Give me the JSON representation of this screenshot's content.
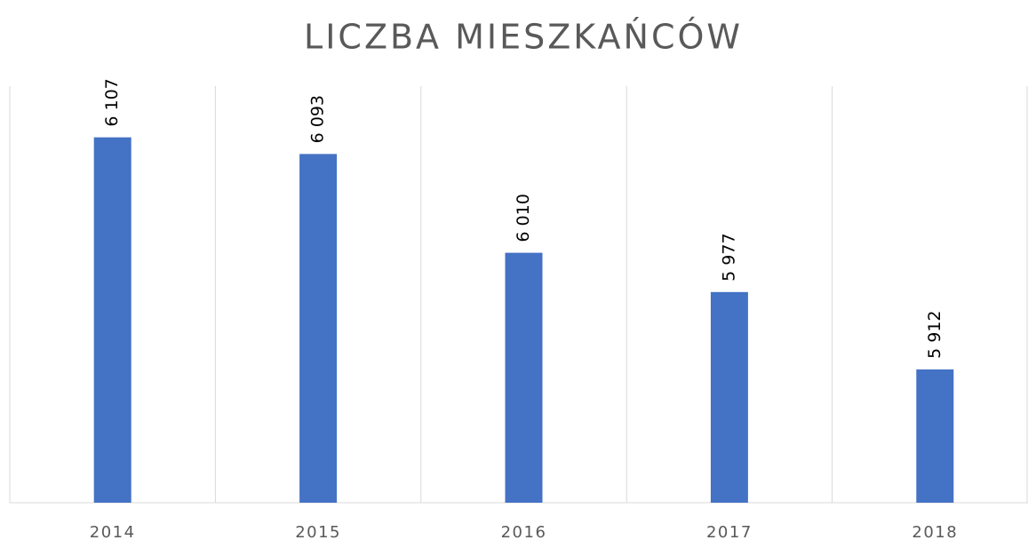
{
  "chart_data": {
    "type": "bar",
    "title": "LICZBA MIESZKAŃCÓW",
    "categories": [
      "2014",
      "2015",
      "2016",
      "2017",
      "2018"
    ],
    "values": [
      6107,
      6093,
      6010,
      5977,
      5912
    ],
    "value_labels": [
      "6 107",
      "6 093",
      "6 010",
      "5 977",
      "5 912"
    ],
    "color": "#4472c4",
    "ylim": [
      5800,
      6150
    ]
  }
}
